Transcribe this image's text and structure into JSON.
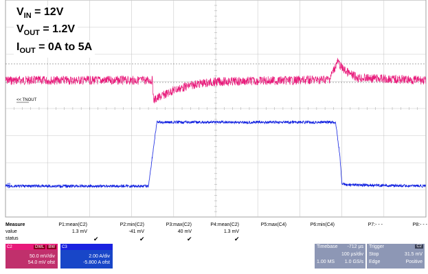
{
  "conditions": {
    "vin": {
      "sym": "V",
      "sub": "IN",
      "rest": " = 12V"
    },
    "vout": {
      "sym": "V",
      "sub": "OUT",
      "rest": " = 1.2V"
    },
    "iout": {
      "sym": "I",
      "sub": "OUT",
      "rest": " = 0A to 5A"
    }
  },
  "chart_data": {
    "type": "line",
    "title": "",
    "xlabel": "",
    "ylabel": "",
    "grid": true,
    "x_divisions": 10,
    "y_divisions": 8,
    "x_unit_per_div": "100 µs/div",
    "series": [
      {
        "label": "C2",
        "color": "#e8197a",
        "scale": "50.0 mV/div",
        "offset": "54.0 mV ofst",
        "time_us": [
          -500,
          -200,
          -150,
          -148,
          -100,
          -50,
          0,
          100,
          200,
          270,
          290,
          300,
          320,
          340,
          500
        ],
        "values_mv": [
          0,
          0,
          0,
          -40,
          -20,
          -8,
          -3,
          -1,
          0,
          2,
          38,
          25,
          12,
          5,
          0
        ]
      },
      {
        "label": "C3",
        "color": "#1020e0",
        "scale": "2.00 A/div",
        "offset": "-5.800 A ofst",
        "time_us": [
          -500,
          -160,
          -150,
          -140,
          -135,
          280,
          285,
          295,
          300,
          310,
          500
        ],
        "values_a": [
          0,
          0,
          2.5,
          5,
          5,
          5,
          5,
          2.5,
          0.2,
          0.1,
          0
        ]
      }
    ]
  },
  "markers": {
    "c2": "C2",
    "c3": "C3",
    "trigger_level": "<< TNOUT"
  },
  "measure": {
    "heading": "Measure",
    "columns": [
      "P1:mean(C2)",
      "P2:min(C2)",
      "P3:max(C2)",
      "P4:mean(C2)",
      "P5:max(C4)",
      "P6:min(C4)",
      "P7:- - -",
      "P8:- - -"
    ],
    "row_labels": {
      "value": "value",
      "status": "status"
    },
    "values": [
      "1.3 mV",
      "-41 mV",
      "40 mV",
      "1.3 mV"
    ],
    "status_mark": "✔"
  },
  "channels": [
    {
      "name": "C2",
      "tag1": "DWL",
      "tag2": "BW",
      "scale": "50.0 mV/div",
      "offset": "54.0 mV ofst",
      "color": "#c0306c"
    },
    {
      "name": "C3",
      "tag1": "",
      "tag2": "",
      "scale": "2.00 A/div",
      "offset": "-5.800 A ofst",
      "color": "#1846c8"
    }
  ],
  "timebase": {
    "label": "Timebase",
    "delay": "-712 µs",
    "per_div": "100 µs/div",
    "samples": "1.00 MS",
    "rate": "1.0 GS/s"
  },
  "trigger": {
    "label": "Trigger",
    "channel": "C2",
    "mode": "Stop",
    "level": "31.5 mV",
    "type": "Edge",
    "slope": "Positive"
  }
}
